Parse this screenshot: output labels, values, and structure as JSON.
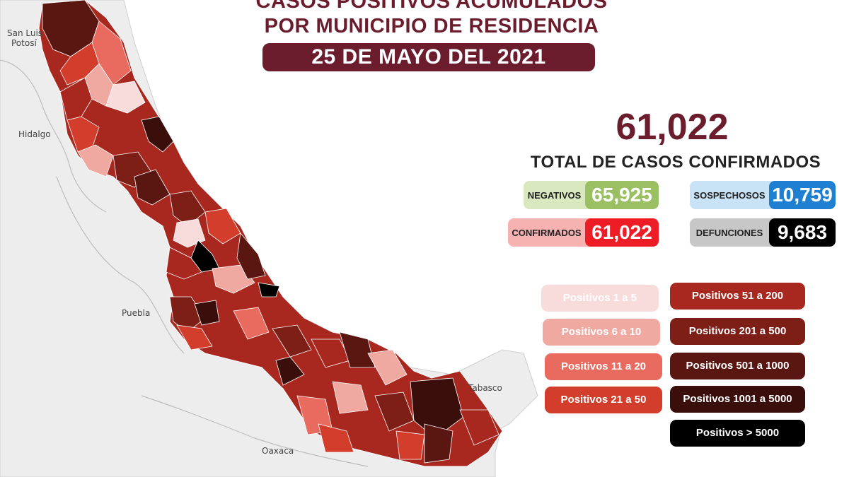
{
  "title": {
    "line1": "CASOS POSITIVOS ACUMULADOS",
    "line2": "POR MUNICIPIO DE RESIDENCIA"
  },
  "date": "25 DE MAYO DEL 2021",
  "total": {
    "number": "61,022",
    "label": "TOTAL DE CASOS CONFIRMADOS"
  },
  "stats": {
    "negativos": {
      "label": "NEGATIVOS",
      "value": "65,925",
      "color": "#9bbf63",
      "bg": "#d9e8bf"
    },
    "sospechosos": {
      "label": "SOSPECHOSOS",
      "value": "10,759",
      "color": "#1f7fd0",
      "bg": "#c9e3f6"
    },
    "confirmados": {
      "label": "CONFIRMADOS",
      "value": "61,022",
      "color": "#ee1c25",
      "bg": "#f6b1b1"
    },
    "defunciones": {
      "label": "DEFUNCIONES",
      "value": "9,683",
      "color": "#000000",
      "bg": "#c7c7c7"
    }
  },
  "legend": [
    {
      "label": "Positivos 1 a 5",
      "color": "#f8dcdc"
    },
    {
      "label": "Positivos 6 a 10",
      "color": "#f0a9a1"
    },
    {
      "label": "Positivos 11 a 20",
      "color": "#e96a5f"
    },
    {
      "label": "Positivos 21 a 50",
      "color": "#d23d2c"
    },
    {
      "label": "Positivos 51 a 200",
      "color": "#a8281f"
    },
    {
      "label": "Positivos 201 a 500",
      "color": "#7d1e17"
    },
    {
      "label": "Positivos 501 a 1000",
      "color": "#5a1712"
    },
    {
      "label": "Positivos 1001 a 5000",
      "color": "#3a0e0b"
    },
    {
      "label": "Positivos > 5000",
      "color": "#000000"
    }
  ],
  "map_labels": {
    "slp_line1": "San Luis",
    "slp_line2": "Potosí",
    "hidalgo": "Hidalgo",
    "puebla": "Puebla",
    "oaxaca": "Oaxaca",
    "tabasco": "Tabasco"
  }
}
